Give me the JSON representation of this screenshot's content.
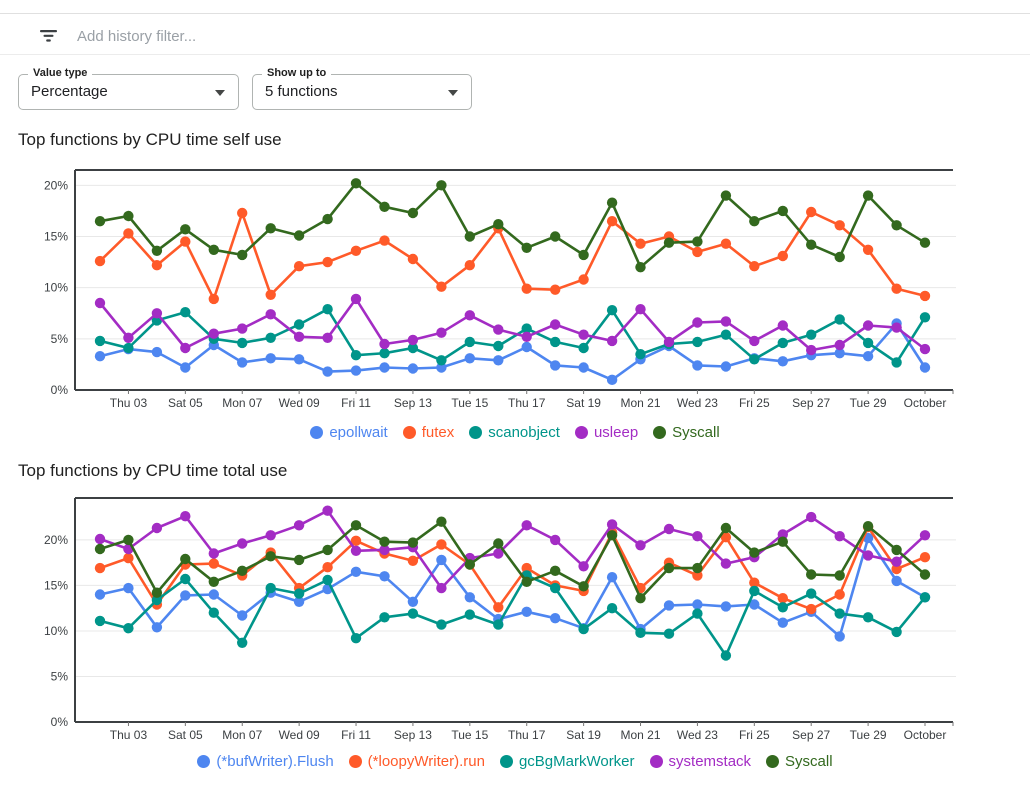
{
  "header": {
    "filter_placeholder": "Add history filter..."
  },
  "controls": {
    "value_type": {
      "label": "Value type",
      "value": "Percentage"
    },
    "show_up_to": {
      "label": "Show up to",
      "value": "5 functions"
    }
  },
  "colors": {
    "blue": "#4e86f0",
    "orange": "#ff5a29",
    "teal": "#00958a",
    "purple": "#a32cc4",
    "green": "#33691e"
  },
  "axis": {
    "y_ticks": [
      "0%",
      "5%",
      "10%",
      "15%",
      "20%"
    ],
    "x_labels": [
      "Thu 03",
      "Sat 05",
      "Mon 07",
      "Wed 09",
      "Fri 11",
      "Sep 13",
      "Tue 15",
      "Thu 17",
      "Sat 19",
      "Mon 21",
      "Wed 23",
      "Fri 25",
      "Sep 27",
      "Tue 29",
      "October"
    ]
  },
  "chart_data": [
    {
      "type": "line",
      "title": "Top functions by CPU time self use",
      "xlabel": "",
      "ylabel": "",
      "ylim": [
        0,
        21.5
      ],
      "grid": true,
      "legend_position": "bottom",
      "x_tick_labels": [
        "Thu 03",
        "Sat 05",
        "Mon 07",
        "Wed 09",
        "Fri 11",
        "Sep 13",
        "Tue 15",
        "Thu 17",
        "Sat 19",
        "Mon 21",
        "Wed 23",
        "Fri 25",
        "Sep 27",
        "Tue 29",
        "October"
      ],
      "series": [
        {
          "name": "epollwait",
          "color": "#4e86f0",
          "values": [
            3.3,
            4.0,
            3.7,
            2.2,
            4.4,
            2.7,
            3.1,
            3.0,
            1.8,
            1.9,
            2.2,
            2.1,
            2.2,
            3.1,
            2.9,
            4.2,
            2.4,
            2.2,
            1.0,
            3.0,
            4.3,
            2.4,
            2.3,
            3.1,
            2.8,
            3.4,
            3.6,
            3.3,
            6.5,
            2.2
          ]
        },
        {
          "name": "futex",
          "color": "#ff5a29",
          "values": [
            12.6,
            15.3,
            12.2,
            14.5,
            8.9,
            17.3,
            9.3,
            12.1,
            12.5,
            13.6,
            14.6,
            12.8,
            10.1,
            12.2,
            15.8,
            9.9,
            9.8,
            10.8,
            16.5,
            14.3,
            15.0,
            13.5,
            14.3,
            12.1,
            13.1,
            17.4,
            16.1,
            13.7,
            9.9,
            9.2
          ]
        },
        {
          "name": "scanobject",
          "color": "#00958a",
          "values": [
            4.8,
            4.1,
            6.8,
            7.6,
            5.0,
            4.6,
            5.1,
            6.4,
            7.9,
            3.4,
            3.6,
            4.1,
            2.9,
            4.7,
            4.3,
            6.0,
            4.7,
            4.1,
            7.8,
            3.5,
            4.5,
            4.7,
            5.4,
            3.0,
            4.6,
            5.4,
            6.9,
            4.6,
            2.7,
            7.1
          ]
        },
        {
          "name": "usleep",
          "color": "#a32cc4",
          "values": [
            8.5,
            5.1,
            7.5,
            4.1,
            5.5,
            6.0,
            7.4,
            5.2,
            5.1,
            8.9,
            4.5,
            4.9,
            5.6,
            7.3,
            5.9,
            5.2,
            6.4,
            5.4,
            4.8,
            7.9,
            4.7,
            6.6,
            6.7,
            4.8,
            6.3,
            3.9,
            4.4,
            6.3,
            6.1,
            4.0
          ]
        },
        {
          "name": "Syscall",
          "color": "#33691e",
          "values": [
            16.5,
            17.0,
            13.6,
            15.7,
            13.7,
            13.2,
            15.8,
            15.1,
            16.7,
            20.2,
            17.9,
            17.3,
            20.0,
            15.0,
            16.2,
            13.9,
            15.0,
            13.2,
            18.3,
            12.0,
            14.4,
            14.5,
            19.0,
            16.5,
            17.5,
            14.2,
            13.0,
            19.0,
            16.1,
            14.4
          ]
        }
      ]
    },
    {
      "type": "line",
      "title": "Top functions by CPU time total use",
      "xlabel": "",
      "ylabel": "",
      "ylim": [
        0,
        24.6
      ],
      "grid": true,
      "legend_position": "bottom",
      "x_tick_labels": [
        "Thu 03",
        "Sat 05",
        "Mon 07",
        "Wed 09",
        "Fri 11",
        "Sep 13",
        "Tue 15",
        "Thu 17",
        "Sat 19",
        "Mon 21",
        "Wed 23",
        "Fri 25",
        "Sep 27",
        "Tue 29",
        "October"
      ],
      "series": [
        {
          "name": "(*bufWriter).Flush",
          "color": "#4e86f0",
          "values": [
            14.0,
            14.7,
            10.4,
            13.9,
            14.0,
            11.7,
            14.2,
            13.2,
            14.6,
            16.5,
            16.0,
            13.2,
            17.8,
            13.7,
            11.3,
            12.1,
            11.4,
            10.3,
            15.9,
            10.2,
            12.8,
            12.9,
            12.7,
            12.9,
            10.9,
            12.1,
            9.4,
            20.2,
            15.5,
            13.7
          ]
        },
        {
          "name": "(*loopyWriter).run",
          "color": "#ff5a29",
          "values": [
            16.9,
            18.0,
            12.9,
            17.3,
            17.4,
            16.1,
            18.6,
            14.7,
            17.0,
            19.9,
            18.5,
            17.7,
            19.5,
            17.3,
            12.6,
            16.9,
            15.0,
            14.4,
            20.8,
            14.7,
            17.5,
            16.1,
            20.3,
            15.3,
            13.6,
            12.4,
            14.0,
            21.4,
            16.8,
            18.1
          ]
        },
        {
          "name": "gcBgMarkWorker",
          "color": "#00958a",
          "values": [
            11.1,
            10.3,
            13.4,
            15.7,
            12.0,
            8.7,
            14.7,
            14.1,
            15.6,
            9.2,
            11.5,
            11.9,
            10.7,
            11.8,
            10.7,
            16.1,
            14.7,
            10.2,
            12.5,
            9.8,
            9.7,
            11.9,
            7.3,
            14.4,
            12.6,
            14.1,
            11.9,
            11.5,
            9.9,
            13.7
          ]
        },
        {
          "name": "systemstack",
          "color": "#a32cc4",
          "values": [
            20.1,
            19.0,
            21.3,
            22.6,
            18.5,
            19.6,
            20.5,
            21.6,
            23.2,
            18.8,
            18.9,
            19.2,
            14.7,
            18.0,
            18.5,
            21.6,
            20.0,
            17.1,
            21.7,
            19.4,
            21.2,
            20.4,
            17.4,
            18.1,
            20.6,
            22.5,
            20.4,
            18.3,
            17.6,
            20.5
          ]
        },
        {
          "name": "Syscall",
          "color": "#33691e",
          "values": [
            19.0,
            20.0,
            14.2,
            17.9,
            15.4,
            16.6,
            18.2,
            17.8,
            18.9,
            21.6,
            19.8,
            19.7,
            22.0,
            17.3,
            19.6,
            15.4,
            16.6,
            14.9,
            20.5,
            13.6,
            16.9,
            16.9,
            21.3,
            18.6,
            19.8,
            16.2,
            16.1,
            21.5,
            18.9,
            16.2
          ]
        }
      ]
    }
  ]
}
